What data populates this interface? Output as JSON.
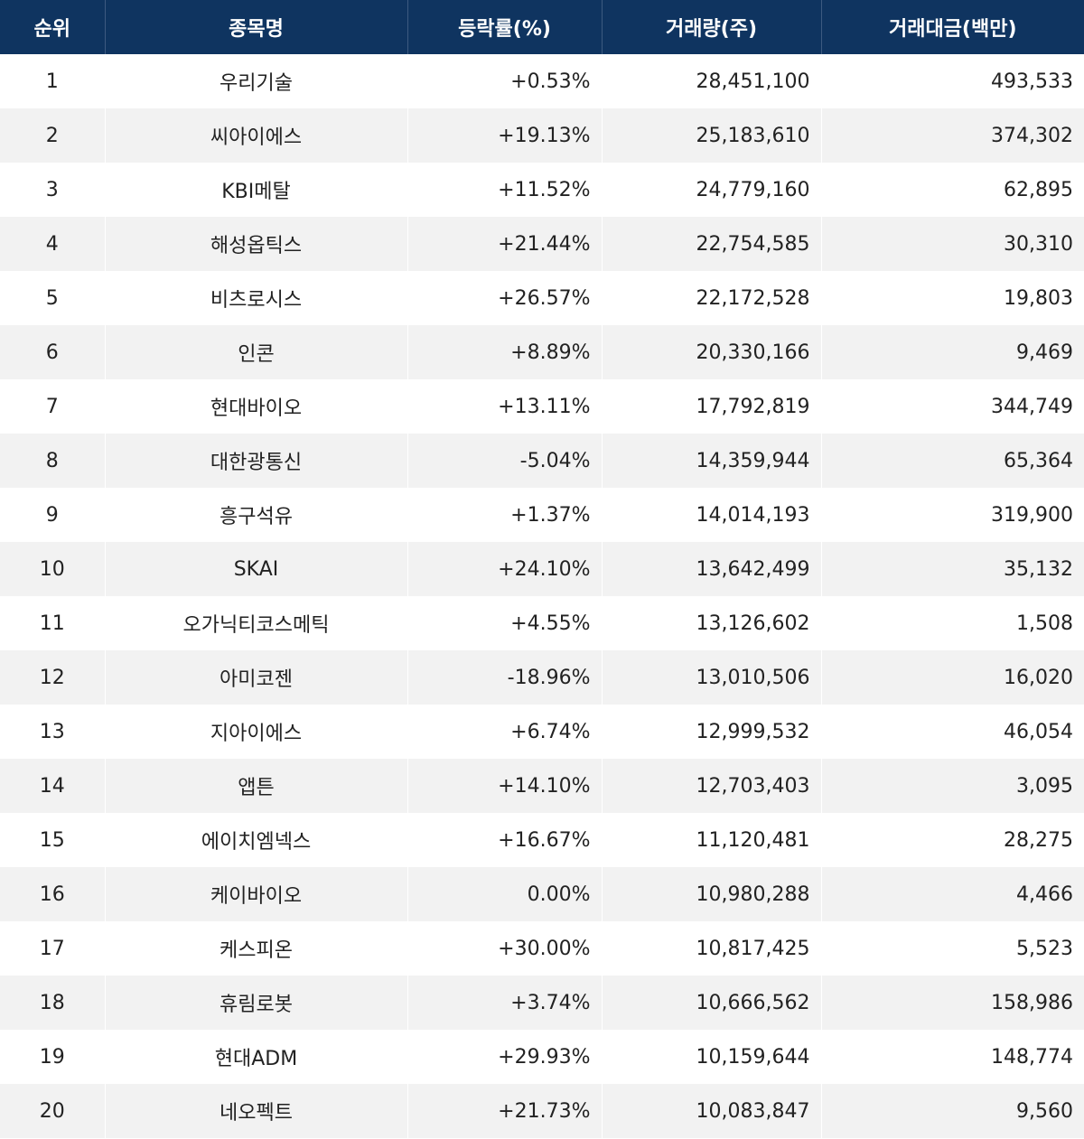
{
  "table": {
    "headers": [
      "순위",
      "종목명",
      "등락률(%)",
      "거래량(주)",
      "거래대금(백만)"
    ],
    "rows": [
      [
        "1",
        "우리기술",
        "+0.53%",
        "28,451,100",
        "493,533"
      ],
      [
        "2",
        "씨아이에스",
        "+19.13%",
        "25,183,610",
        "374,302"
      ],
      [
        "3",
        "KBI메탈",
        "+11.52%",
        "24,779,160",
        "62,895"
      ],
      [
        "4",
        "해성옵틱스",
        "+21.44%",
        "22,754,585",
        "30,310"
      ],
      [
        "5",
        "비츠로시스",
        "+26.57%",
        "22,172,528",
        "19,803"
      ],
      [
        "6",
        "인콘",
        "+8.89%",
        "20,330,166",
        "9,469"
      ],
      [
        "7",
        "현대바이오",
        "+13.11%",
        "17,792,819",
        "344,749"
      ],
      [
        "8",
        "대한광통신",
        "-5.04%",
        "14,359,944",
        "65,364"
      ],
      [
        "9",
        "흥구석유",
        "+1.37%",
        "14,014,193",
        "319,900"
      ],
      [
        "10",
        "SKAI",
        "+24.10%",
        "13,642,499",
        "35,132"
      ],
      [
        "11",
        "오가닉티코스메틱",
        "+4.55%",
        "13,126,602",
        "1,508"
      ],
      [
        "12",
        "아미코젠",
        "-18.96%",
        "13,010,506",
        "16,020"
      ],
      [
        "13",
        "지아이에스",
        "+6.74%",
        "12,999,532",
        "46,054"
      ],
      [
        "14",
        "앱튼",
        "+14.10%",
        "12,703,403",
        "3,095"
      ],
      [
        "15",
        "에이치엠넥스",
        "+16.67%",
        "11,120,481",
        "28,275"
      ],
      [
        "16",
        "케이바이오",
        "0.00%",
        "10,980,288",
        "4,466"
      ],
      [
        "17",
        "케스피온",
        "+30.00%",
        "10,817,425",
        "5,523"
      ],
      [
        "18",
        "휴림로봇",
        "+3.74%",
        "10,666,562",
        "158,986"
      ],
      [
        "19",
        "현대ADM",
        "+29.93%",
        "10,159,644",
        "148,774"
      ],
      [
        "20",
        "네오펙트",
        "+21.73%",
        "10,083,847",
        "9,560"
      ]
    ]
  },
  "colors": {
    "header_bg": "#0f3460",
    "header_text": "#ffffff",
    "row_alt_bg": "#f2f2f2",
    "row_bg": "#ffffff"
  }
}
